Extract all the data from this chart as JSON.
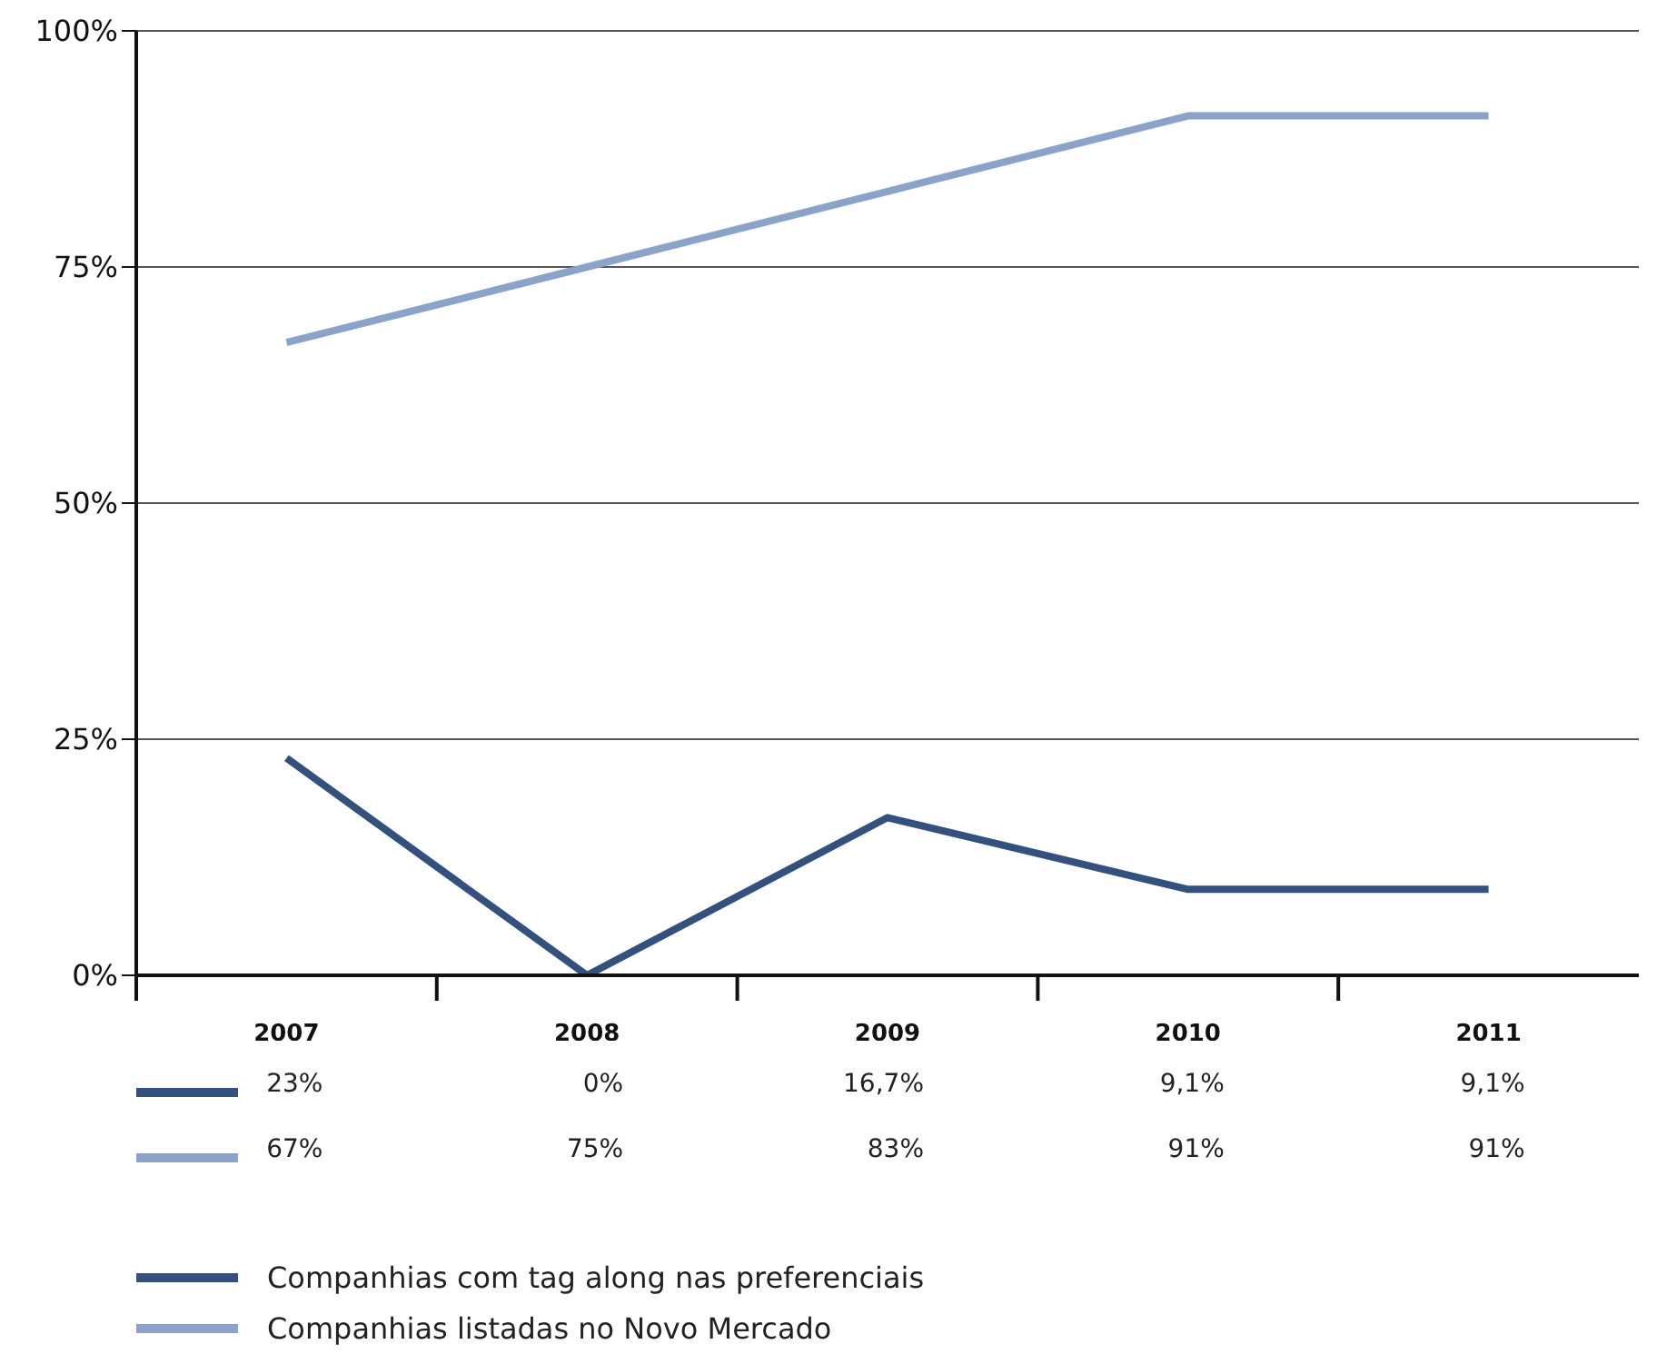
{
  "chart_data": {
    "type": "line",
    "categories": [
      "2007",
      "2008",
      "2009",
      "2010",
      "2011"
    ],
    "series": [
      {
        "name": "Companhias com tag along nas preferenciais",
        "color": "#34507c",
        "values": [
          23,
          0,
          16.7,
          9.1,
          9.1
        ],
        "value_labels": [
          "23%",
          "0%",
          "16,7%",
          "9,1%",
          "9,1%"
        ]
      },
      {
        "name": "Companhias listadas no Novo Mercado",
        "color": "#8ca2c8",
        "values": [
          67,
          75,
          83,
          91,
          91
        ],
        "value_labels": [
          "67%",
          "75%",
          "83%",
          "91%",
          "91%"
        ]
      }
    ],
    "ylim": [
      0,
      100
    ],
    "yticks": [
      {
        "value": 0,
        "label": "0%"
      },
      {
        "value": 25,
        "label": "25%"
      },
      {
        "value": 50,
        "label": "50%"
      },
      {
        "value": 75,
        "label": "75%"
      },
      {
        "value": 100,
        "label": "100%"
      }
    ],
    "grid": "y",
    "legend": "bottom",
    "marker": "none",
    "line_style": "solid"
  }
}
